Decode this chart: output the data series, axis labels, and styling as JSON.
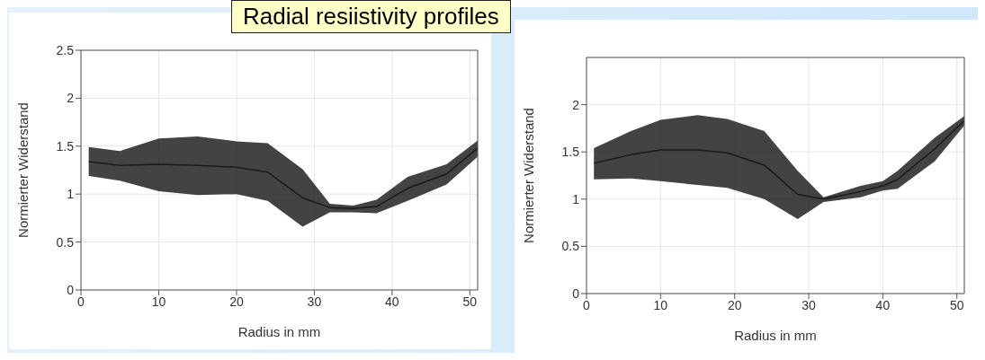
{
  "chart_data": [
    {
      "type": "line",
      "title": "Radial resiistivity profiles",
      "xlabel": "Radius in mm",
      "ylabel": "Normierter Widerstand",
      "x": [
        1,
        5,
        10,
        15,
        20,
        24,
        28.5,
        32,
        35,
        38,
        42,
        47,
        51
      ],
      "series": [
        {
          "color": "#1a1a1a",
          "values": [
            1.34,
            1.3,
            1.31,
            1.3,
            1.28,
            1.23,
            0.96,
            0.86,
            0.85,
            0.87,
            1.06,
            1.21,
            1.48
          ],
          "lower": [
            1.19,
            1.14,
            1.03,
            0.99,
            1.0,
            0.93,
            0.66,
            0.81,
            0.81,
            0.8,
            0.93,
            1.1,
            1.39
          ],
          "upper": [
            1.49,
            1.45,
            1.58,
            1.6,
            1.55,
            1.53,
            1.26,
            0.9,
            0.88,
            0.94,
            1.18,
            1.31,
            1.56
          ]
        }
      ],
      "xlim": [
        0,
        51
      ],
      "xticks": [
        0,
        10,
        20,
        30,
        40,
        50
      ],
      "ylim": [
        0,
        2.5
      ],
      "yticks": [
        0,
        0.5,
        1,
        1.5,
        2,
        2.5
      ],
      "grid": true,
      "line_style": "solid"
    },
    {
      "type": "line",
      "xlabel": "Radius in mm",
      "ylabel": "Normierter Widerstand",
      "x": [
        1,
        6,
        10,
        15,
        19,
        24,
        28.5,
        32,
        37,
        40,
        42,
        47,
        51
      ],
      "series": [
        {
          "color": "#1a1a1a",
          "values": [
            1.38,
            1.47,
            1.52,
            1.52,
            1.49,
            1.36,
            1.05,
            1.0,
            1.08,
            1.14,
            1.21,
            1.53,
            1.83
          ],
          "lower": [
            1.21,
            1.22,
            1.19,
            1.15,
            1.12,
            1.0,
            0.79,
            0.97,
            1.02,
            1.09,
            1.11,
            1.4,
            1.78
          ],
          "upper": [
            1.54,
            1.72,
            1.84,
            1.89,
            1.85,
            1.72,
            1.3,
            1.02,
            1.14,
            1.19,
            1.3,
            1.65,
            1.88
          ]
        }
      ],
      "xlim": [
        0,
        51
      ],
      "xticks": [
        0,
        10,
        20,
        30,
        40,
        50
      ],
      "ylim": [
        0,
        2.5
      ],
      "yticks": [
        0,
        0.5,
        1,
        1.5,
        2
      ],
      "grid": true,
      "line_style": "solid"
    }
  ]
}
